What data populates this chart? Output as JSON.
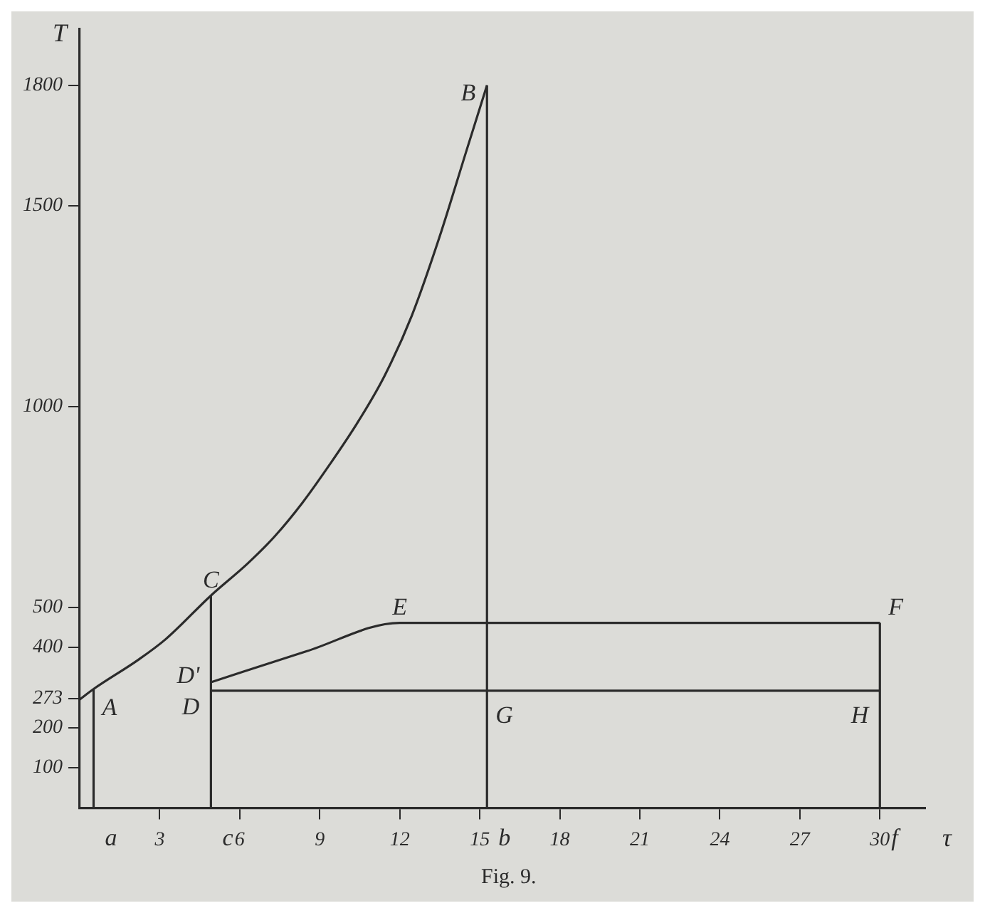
{
  "chart_data": {
    "type": "line",
    "ylabel": "T",
    "xlabel": "τ",
    "xlim": [
      0,
      31.7
    ],
    "xticks": [
      3,
      6,
      9,
      12,
      15,
      18,
      21,
      24,
      27,
      30
    ],
    "ylim": [
      0,
      1940
    ],
    "yticks": [
      100,
      200,
      273,
      400,
      500,
      1000,
      1500,
      1800
    ],
    "grid": false,
    "legend": false,
    "marker": "none",
    "line_style": "solid",
    "series": [
      {
        "color": "#2b2b2b",
        "x": [
          0,
          0.52,
          2.2,
          3.22,
          4.92,
          6.3,
          7.32,
          8.35,
          9.37,
          10.4,
          11.42,
          12.45,
          13.47,
          14.5,
          15.27
        ],
        "values": [
          270,
          296,
          369,
          420,
          529,
          609,
          677,
          760,
          855,
          958,
          1075,
          1226,
          1418,
          1637,
          1800
        ]
      },
      {
        "color": "#2b2b2b",
        "x": [
          0.52,
          0.52
        ],
        "values": [
          0,
          296
        ]
      },
      {
        "color": "#2b2b2b",
        "x": [
          4.92,
          4.92
        ],
        "values": [
          0,
          529
        ]
      },
      {
        "color": "#2b2b2b",
        "x": [
          4.92,
          8.5,
          12,
          30
        ],
        "values": [
          313,
          390,
          461,
          461
        ]
      },
      {
        "color": "#2b2b2b",
        "x": [
          4.92,
          30
        ],
        "values": [
          292,
          292
        ]
      },
      {
        "color": "#2b2b2b",
        "x": [
          15.27,
          15.27
        ],
        "values": [
          0,
          1800
        ]
      },
      {
        "color": "#2b2b2b",
        "x": [
          30,
          30
        ],
        "values": [
          0,
          461
        ]
      }
    ],
    "annotations": [
      {
        "text": "A",
        "x": 0.52,
        "y": 296
      },
      {
        "text": "B",
        "x": 15.27,
        "y": 1800
      },
      {
        "text": "C",
        "x": 4.92,
        "y": 529
      },
      {
        "text": "D'",
        "x": 4.92,
        "y": 313
      },
      {
        "text": "D",
        "x": 4.92,
        "y": 292
      },
      {
        "text": "E",
        "x": 12,
        "y": 461
      },
      {
        "text": "F",
        "x": 30,
        "y": 461
      },
      {
        "text": "G",
        "x": 15.27,
        "y": 292
      },
      {
        "text": "H",
        "x": 30,
        "y": 292
      },
      {
        "text": "a",
        "x": 0.52,
        "y": 0
      },
      {
        "text": "c",
        "x": 4.92,
        "y": 0
      },
      {
        "text": "b",
        "x": 15.27,
        "y": 0
      },
      {
        "text": "f",
        "x": 30,
        "y": 0
      },
      "Fig. 9."
    ]
  }
}
